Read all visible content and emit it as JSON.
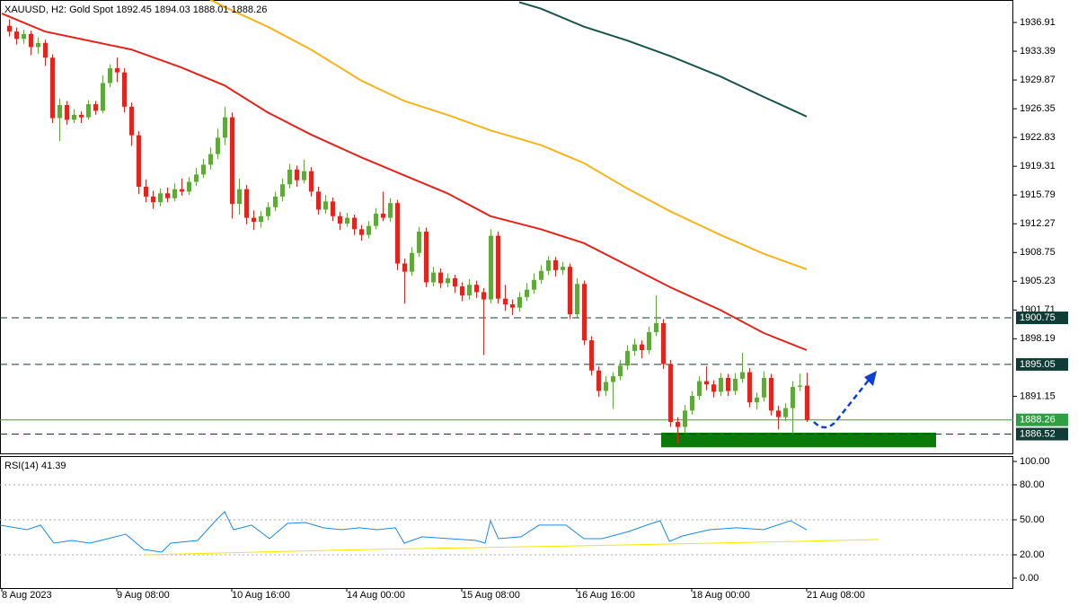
{
  "chart_data": {
    "type": "candlestick",
    "title": "XAUUSD, H2:  Gold Spot  1892.45 1894.03 1888.01 1888.26",
    "xlim": [
      -1.25,
      139.75
    ],
    "xticks": [
      {
        "value": -1,
        "label": "8 Aug 2023"
      },
      {
        "value": 15,
        "label": "9 Aug 08:00"
      },
      {
        "value": 31,
        "label": "10 Aug 16:00"
      },
      {
        "value": 47,
        "label": "14 Aug 00:00"
      },
      {
        "value": 63,
        "label": "15 Aug 08:00"
      },
      {
        "value": 79,
        "label": "16 Aug 16:00"
      },
      {
        "value": 95,
        "label": "18 Aug 00:00"
      },
      {
        "value": 111,
        "label": "21 Aug 08:00"
      }
    ],
    "ylim": [
      1884.16,
      1939.66
    ],
    "yticks": [
      1936.91,
      1933.39,
      1929.87,
      1926.35,
      1922.83,
      1919.31,
      1915.79,
      1912.27,
      1908.75,
      1905.23,
      1901.71,
      1898.19,
      1891.15
    ],
    "up_color": "#5fa83c",
    "down_color": "#e3231c",
    "ohlc": [
      [
        1936.5,
        1937.3,
        1935.2,
        1935.8
      ],
      [
        1935.8,
        1936.3,
        1934.2,
        1934.9
      ],
      [
        1934.9,
        1936.0,
        1934.3,
        1935.5
      ],
      [
        1935.5,
        1935.9,
        1932.9,
        1933.9
      ],
      [
        1933.9,
        1935.1,
        1933.1,
        1934.4
      ],
      [
        1934.4,
        1934.8,
        1931.6,
        1932.6
      ],
      [
        1932.6,
        1933.0,
        1924.6,
        1925.2
      ],
      [
        1925.2,
        1927.6,
        1922.4,
        1926.8
      ],
      [
        1926.8,
        1927.3,
        1924.4,
        1925.0
      ],
      [
        1925.0,
        1926.3,
        1924.6,
        1925.6
      ],
      [
        1925.6,
        1926.0,
        1924.6,
        1925.3
      ],
      [
        1925.3,
        1927.4,
        1925.0,
        1926.9
      ],
      [
        1926.9,
        1927.3,
        1925.6,
        1926.1
      ],
      [
        1926.1,
        1930.4,
        1925.8,
        1929.5
      ],
      [
        1929.5,
        1931.8,
        1929.0,
        1931.3
      ],
      [
        1931.3,
        1932.6,
        1929.6,
        1930.8
      ],
      [
        1930.8,
        1931.3,
        1925.9,
        1926.6
      ],
      [
        1926.6,
        1927.1,
        1921.8,
        1923.1
      ],
      [
        1923.1,
        1923.6,
        1915.9,
        1916.8
      ],
      [
        1916.8,
        1917.7,
        1914.9,
        1915.6
      ],
      [
        1915.6,
        1916.3,
        1914.1,
        1914.9
      ],
      [
        1914.9,
        1916.6,
        1914.4,
        1916.0
      ],
      [
        1916.0,
        1916.7,
        1914.9,
        1915.4
      ],
      [
        1915.4,
        1917.2,
        1915.0,
        1916.5
      ],
      [
        1916.5,
        1917.8,
        1915.7,
        1916.2
      ],
      [
        1916.2,
        1918.0,
        1915.8,
        1917.4
      ],
      [
        1917.4,
        1919.1,
        1916.9,
        1918.3
      ],
      [
        1918.3,
        1920.2,
        1917.9,
        1919.5
      ],
      [
        1919.5,
        1921.6,
        1918.9,
        1920.8
      ],
      [
        1920.8,
        1923.9,
        1920.2,
        1922.8
      ],
      [
        1922.8,
        1926.6,
        1921.9,
        1925.3
      ],
      [
        1925.3,
        1925.9,
        1912.9,
        1914.7
      ],
      [
        1914.7,
        1917.8,
        1913.4,
        1916.5
      ],
      [
        1916.5,
        1917.0,
        1912.2,
        1913.0
      ],
      [
        1913.0,
        1913.9,
        1911.5,
        1912.5
      ],
      [
        1912.5,
        1913.8,
        1911.8,
        1913.2
      ],
      [
        1913.2,
        1914.9,
        1912.7,
        1914.3
      ],
      [
        1914.3,
        1916.2,
        1913.8,
        1915.6
      ],
      [
        1915.6,
        1917.8,
        1915.0,
        1917.1
      ],
      [
        1917.1,
        1919.6,
        1916.6,
        1918.9
      ],
      [
        1918.9,
        1919.4,
        1916.8,
        1917.6
      ],
      [
        1917.6,
        1920.1,
        1917.2,
        1918.7
      ],
      [
        1918.7,
        1919.2,
        1915.6,
        1916.2
      ],
      [
        1916.2,
        1916.8,
        1913.4,
        1914.0
      ],
      [
        1914.0,
        1915.8,
        1913.5,
        1915.0
      ],
      [
        1915.0,
        1915.5,
        1912.6,
        1913.2
      ],
      [
        1913.2,
        1913.7,
        1911.5,
        1912.3
      ],
      [
        1912.3,
        1913.6,
        1911.9,
        1913.0
      ],
      [
        1913.0,
        1913.4,
        1910.9,
        1911.6
      ],
      [
        1911.6,
        1912.1,
        1910.2,
        1910.9
      ],
      [
        1910.9,
        1912.6,
        1910.5,
        1912.0
      ],
      [
        1912.0,
        1914.2,
        1911.6,
        1913.5
      ],
      [
        1913.5,
        1916.2,
        1912.6,
        1913.0
      ],
      [
        1913.0,
        1915.4,
        1912.5,
        1914.8
      ],
      [
        1914.8,
        1915.2,
        1906.6,
        1907.4
      ],
      [
        1907.4,
        1908.0,
        1902.5,
        1906.4
      ],
      [
        1906.4,
        1909.4,
        1905.9,
        1908.7
      ],
      [
        1908.7,
        1911.9,
        1908.2,
        1911.3
      ],
      [
        1911.3,
        1911.8,
        1904.5,
        1905.1
      ],
      [
        1905.1,
        1907.0,
        1904.6,
        1906.3
      ],
      [
        1906.3,
        1906.8,
        1904.4,
        1905.0
      ],
      [
        1905.0,
        1906.2,
        1904.5,
        1905.6
      ],
      [
        1905.6,
        1906.0,
        1903.8,
        1904.6
      ],
      [
        1904.6,
        1905.1,
        1902.8,
        1903.5
      ],
      [
        1903.5,
        1905.5,
        1903.0,
        1904.8
      ],
      [
        1904.8,
        1905.3,
        1903.2,
        1903.9
      ],
      [
        1903.9,
        1904.4,
        1896.2,
        1903.0
      ],
      [
        1903.0,
        1911.6,
        1902.5,
        1910.8
      ],
      [
        1910.8,
        1911.3,
        1902.5,
        1903.1
      ],
      [
        1903.1,
        1904.8,
        1901.6,
        1902.4
      ],
      [
        1902.4,
        1903.0,
        1901.1,
        1902.0
      ],
      [
        1902.0,
        1903.9,
        1901.5,
        1903.3
      ],
      [
        1903.3,
        1905.0,
        1902.8,
        1904.2
      ],
      [
        1904.2,
        1906.2,
        1903.7,
        1905.4
      ],
      [
        1905.4,
        1907.2,
        1904.9,
        1906.5
      ],
      [
        1906.5,
        1908.3,
        1906.0,
        1907.8
      ],
      [
        1907.8,
        1908.2,
        1905.8,
        1906.6
      ],
      [
        1906.6,
        1907.6,
        1906.0,
        1907.0
      ],
      [
        1907.0,
        1907.4,
        1900.6,
        1901.2
      ],
      [
        1901.2,
        1905.6,
        1900.8,
        1904.9
      ],
      [
        1904.9,
        1905.3,
        1897.4,
        1898.0
      ],
      [
        1898.0,
        1898.5,
        1893.7,
        1894.3
      ],
      [
        1894.3,
        1894.8,
        1891.1,
        1891.8
      ],
      [
        1891.8,
        1893.6,
        1891.2,
        1892.9
      ],
      [
        1892.9,
        1894.1,
        1889.6,
        1893.6
      ],
      [
        1893.6,
        1895.6,
        1893.1,
        1894.9
      ],
      [
        1894.9,
        1897.4,
        1894.4,
        1896.7
      ],
      [
        1896.7,
        1898.2,
        1896.1,
        1897.5
      ],
      [
        1897.5,
        1898.0,
        1895.8,
        1896.8
      ],
      [
        1896.8,
        1899.7,
        1896.3,
        1899.0
      ],
      [
        1899.0,
        1903.5,
        1898.5,
        1900.1
      ],
      [
        1900.1,
        1900.6,
        1894.5,
        1895.1
      ],
      [
        1895.1,
        1895.6,
        1887.4,
        1888.0
      ],
      [
        1888.0,
        1888.6,
        1885.4,
        1887.4
      ],
      [
        1887.4,
        1890.1,
        1886.6,
        1889.4
      ],
      [
        1889.4,
        1891.8,
        1888.9,
        1891.2
      ],
      [
        1891.2,
        1893.6,
        1890.7,
        1893.0
      ],
      [
        1893.0,
        1894.8,
        1891.9,
        1892.6
      ],
      [
        1892.6,
        1893.1,
        1891.0,
        1891.7
      ],
      [
        1891.7,
        1894.0,
        1891.2,
        1893.4
      ],
      [
        1893.4,
        1893.9,
        1891.2,
        1891.8
      ],
      [
        1891.8,
        1894.0,
        1891.3,
        1893.3
      ],
      [
        1893.3,
        1896.5,
        1892.8,
        1894.1
      ],
      [
        1894.1,
        1894.6,
        1889.8,
        1890.4
      ],
      [
        1890.4,
        1891.6,
        1889.5,
        1891.0
      ],
      [
        1891.0,
        1894.2,
        1890.5,
        1893.4
      ],
      [
        1893.4,
        1893.9,
        1888.8,
        1889.4
      ],
      [
        1889.4,
        1890.0,
        1887.1,
        1888.6
      ],
      [
        1888.6,
        1890.3,
        1888.1,
        1889.7
      ],
      [
        1889.7,
        1893.0,
        1886.6,
        1892.3
      ],
      [
        1892.3,
        1893.9,
        1891.8,
        1892.45
      ],
      [
        1892.45,
        1894.03,
        1888.01,
        1888.26
      ]
    ],
    "moving_averages": [
      {
        "color": "#e3231c",
        "x": [
          -1,
          5,
          11,
          17,
          24,
          30,
          36,
          42,
          49,
          55,
          61,
          67,
          74,
          80,
          86,
          92,
          99,
          105,
          111
        ],
        "values": [
          1938.0,
          1935.8,
          1934.7,
          1933.6,
          1931.4,
          1929.2,
          1925.9,
          1923.2,
          1920.4,
          1918.2,
          1916.0,
          1913.2,
          1911.6,
          1909.9,
          1907.2,
          1904.5,
          1901.7,
          1898.9,
          1896.8
        ]
      },
      {
        "color": "#f5b41b",
        "x": [
          28,
          30,
          36,
          42,
          49,
          55,
          61,
          67,
          74,
          80,
          86,
          92,
          99,
          105,
          111
        ],
        "values": [
          1939.7,
          1938.8,
          1936.4,
          1933.6,
          1929.8,
          1927.3,
          1925.6,
          1923.7,
          1921.9,
          1919.7,
          1916.6,
          1913.8,
          1910.9,
          1908.6,
          1906.7
        ]
      },
      {
        "color": "#17544a",
        "x": [
          71,
          74,
          80,
          86,
          92,
          99,
          105,
          111
        ],
        "values": [
          1939.4,
          1938.6,
          1936.4,
          1934.7,
          1932.8,
          1930.3,
          1927.8,
          1925.4
        ]
      }
    ],
    "levels": [
      {
        "value": 1900.75,
        "dashed": true,
        "color": "#0f3d36"
      },
      {
        "value": 1895.05,
        "dashed": true,
        "color": "#0f3d36"
      },
      {
        "value": 1888.26,
        "dashed": false,
        "color": "#2ea043"
      },
      {
        "value": 1886.52,
        "dashed": true,
        "color": "#0f3d36"
      }
    ],
    "zone": {
      "x": [
        90.75,
        129
      ],
      "y": [
        1884.9,
        1886.7
      ],
      "color": "#0a7a0a"
    },
    "indicator": {
      "title": "RSI(14) 41.39",
      "ylim": [
        -8.5,
        104.6
      ],
      "yticks": [
        {
          "value": 100,
          "label": "100.00"
        },
        {
          "value": 80,
          "label": "80.00"
        },
        {
          "value": 50,
          "label": "50.00"
        },
        {
          "value": 20,
          "label": "20.00"
        },
        {
          "value": 0,
          "label": "0.00"
        }
      ],
      "series": [
        {
          "color": "#1e88e5",
          "x": [
            -1.25,
            2.5,
            4.4,
            6.25,
            8.75,
            11.25,
            13.75,
            16.25,
            18.75,
            21.25,
            22.5,
            26.25,
            28.75,
            30,
            31.25,
            33.75,
            36.25,
            38.75,
            41.25,
            43.75,
            46.25,
            48.75,
            51.25,
            53.75,
            55,
            57.5,
            61.25,
            65,
            66.25,
            67,
            68.1,
            71.25,
            73.75,
            77.5,
            80,
            82.5,
            86.25,
            88.75,
            90.6,
            91.9,
            93.75,
            97.5,
            101.25,
            105,
            108.75,
            111
          ],
          "values": [
            45.4,
            41.5,
            45.4,
            30.0,
            32.3,
            30.0,
            33.8,
            37.7,
            24.6,
            22.3,
            30.0,
            32.3,
            49.2,
            56.9,
            41.5,
            45.4,
            33.8,
            46.9,
            47.7,
            43.1,
            41.5,
            43.1,
            41.5,
            43.1,
            30.0,
            35.4,
            33.8,
            32.3,
            30.0,
            49.2,
            33.8,
            35.4,
            45.4,
            45.4,
            33.8,
            33.8,
            40.0,
            45.4,
            49.2,
            31.5,
            36.2,
            41.5,
            43.1,
            41.5,
            49.2,
            41.39
          ]
        },
        {
          "color": "#f5e600",
          "x": [
            19,
            50,
            80,
            110,
            121
          ],
          "values": [
            20.0,
            24.6,
            27.7,
            31.5,
            33.1
          ]
        }
      ]
    }
  }
}
